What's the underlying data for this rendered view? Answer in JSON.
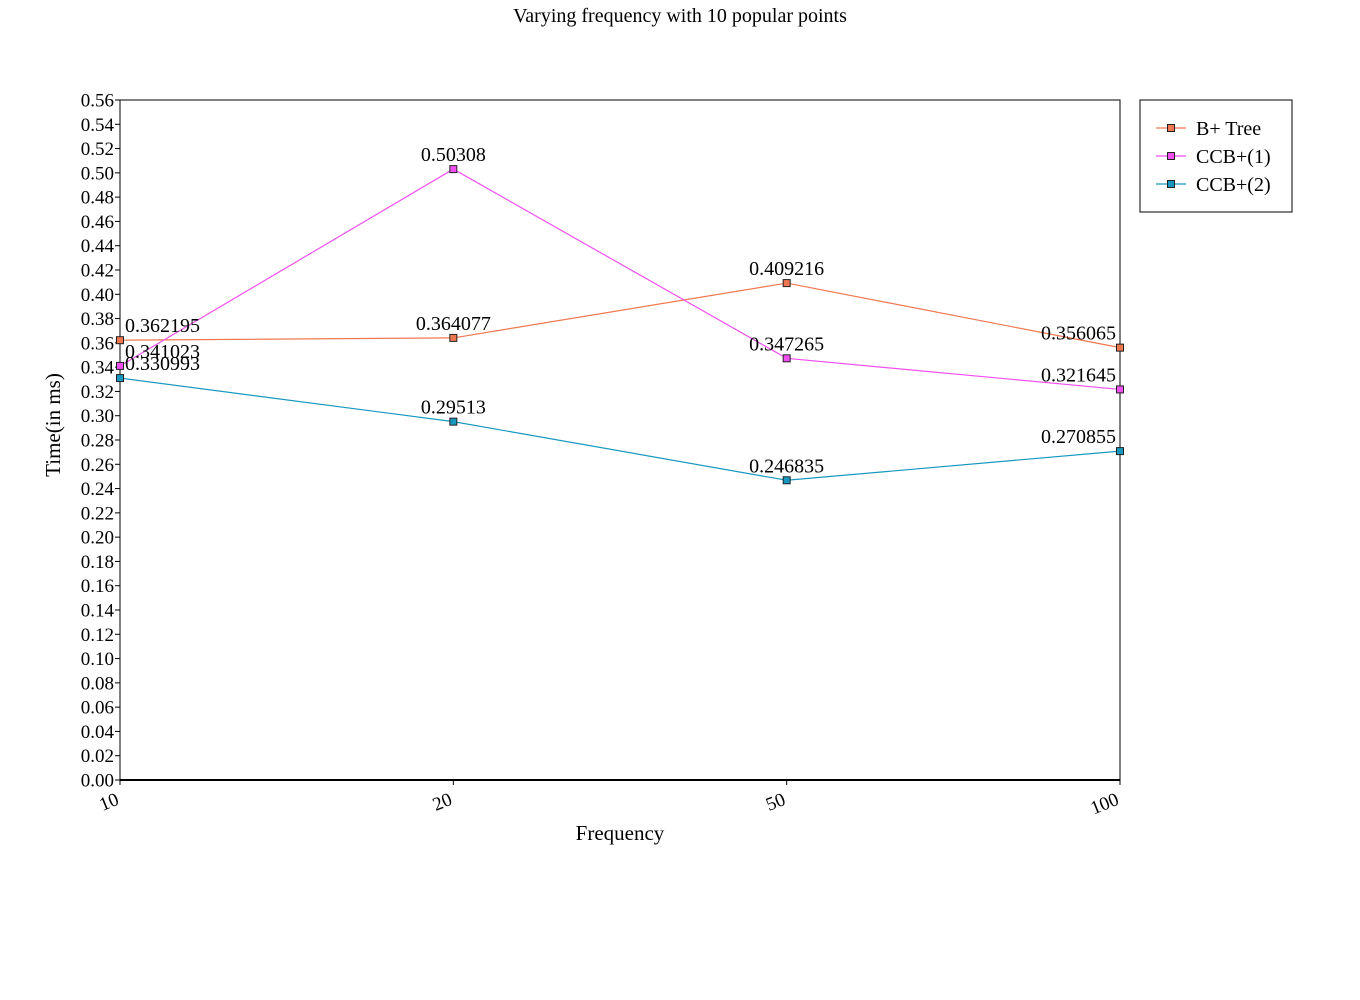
{
  "chart_data": {
    "type": "line",
    "title": "Varying frequency with 10 popular points",
    "xlabel": "Frequency",
    "ylabel": "Time(in ms)",
    "categories": [
      "10",
      "20",
      "50",
      "100"
    ],
    "ylim": [
      0,
      0.56
    ],
    "ytick_step": 0.02,
    "grid": false,
    "legend_position": "top-right",
    "series": [
      {
        "name": "B+ Tree",
        "color": "#f07850",
        "values": [
          0.362195,
          0.364077,
          0.409216,
          0.356065
        ],
        "labels": [
          "0.362195",
          "0.364077",
          "0.409216",
          "0.356065"
        ]
      },
      {
        "name": "CCB+(1)",
        "color": "#f050f0",
        "values": [
          0.341023,
          0.50308,
          0.347265,
          0.321645
        ],
        "labels": [
          "0.341023",
          "0.50308",
          "0.347265",
          "0.321645"
        ]
      },
      {
        "name": "CCB+(2)",
        "color": "#1898c0",
        "values": [
          0.330993,
          0.29513,
          0.246835,
          0.270855
        ],
        "labels": [
          "0.330993",
          "0.29513",
          "0.246835",
          "0.270855"
        ]
      }
    ]
  }
}
